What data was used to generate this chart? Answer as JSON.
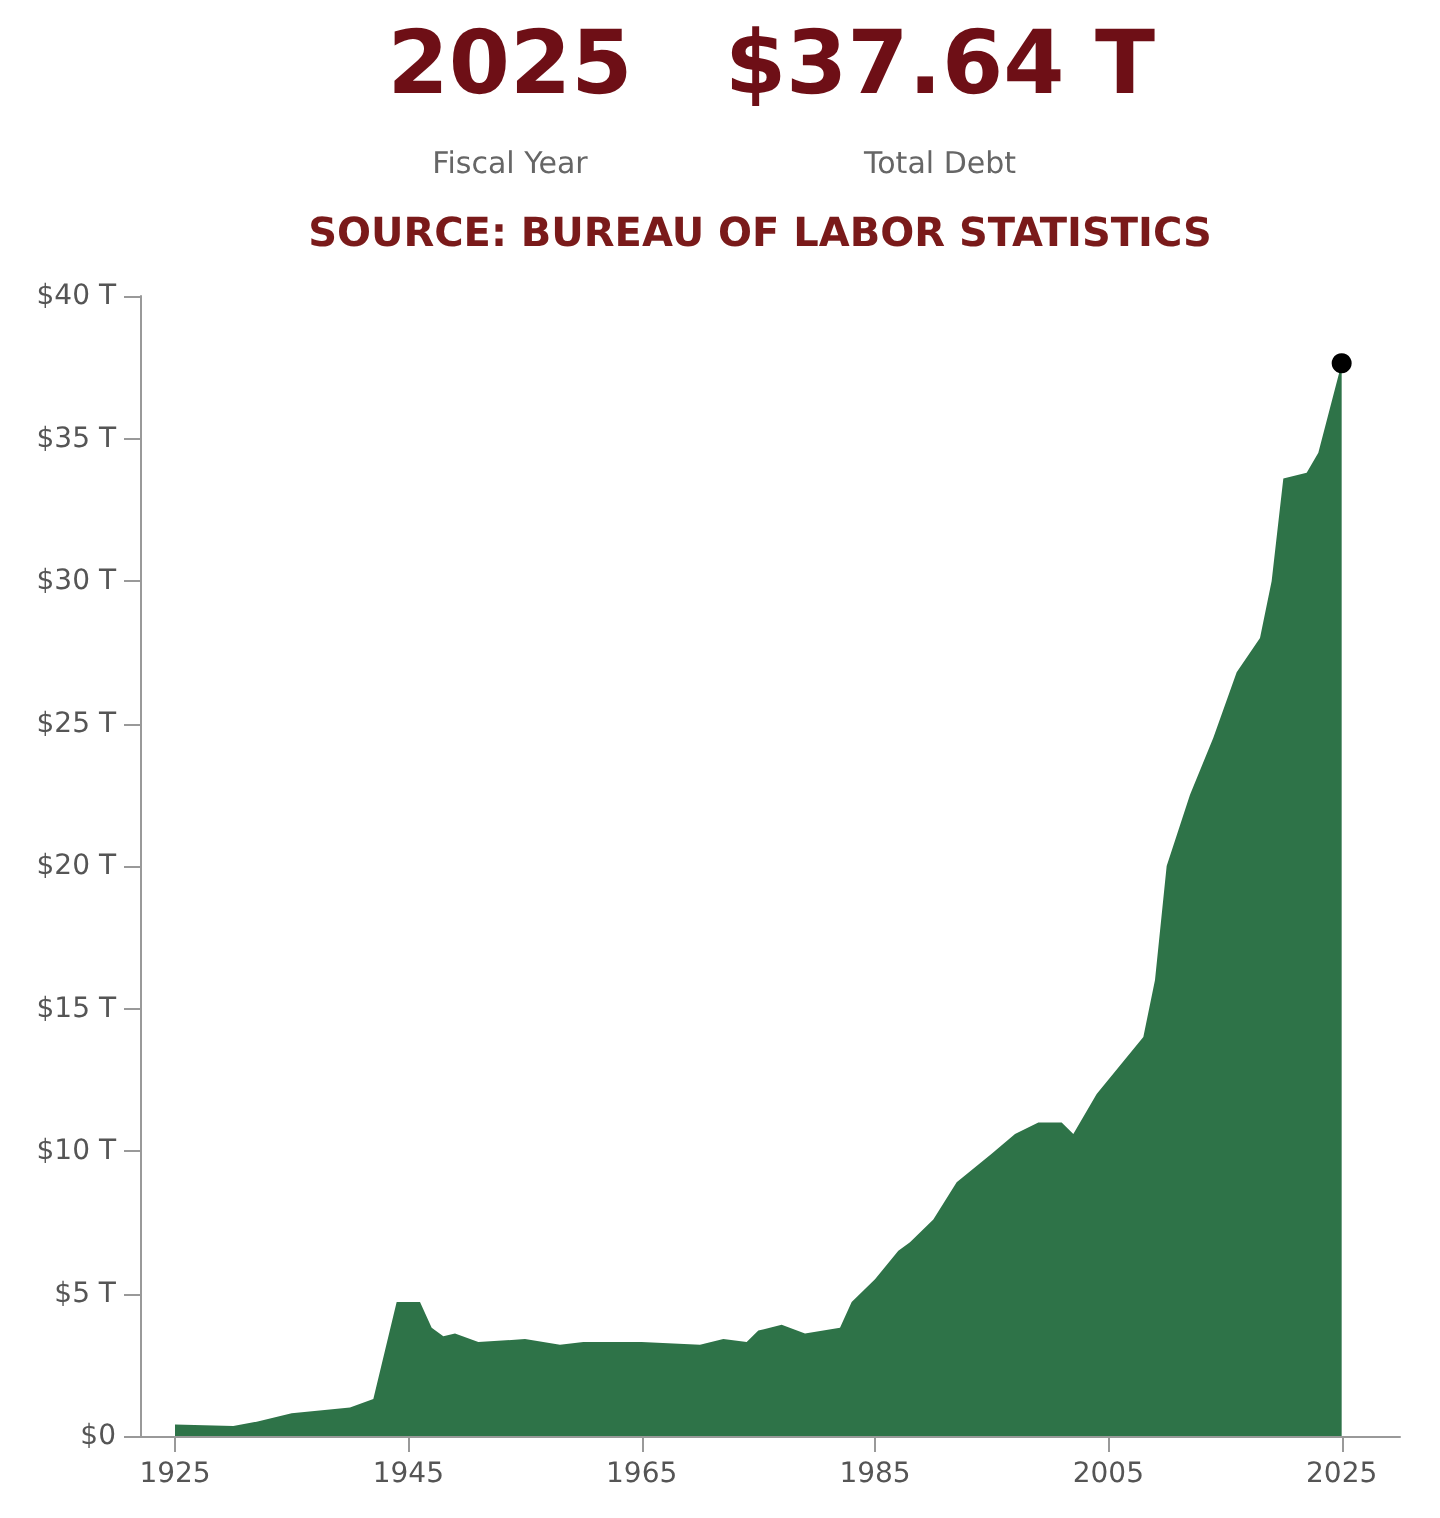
{
  "chart_data": {
    "type": "area",
    "annotations": [
      "2025",
      "Fiscal Year",
      "$37.64 T",
      "Total Debt",
      "SOURCE: BUREAU OF LABOR STATISTICS"
    ],
    "x": [
      1925,
      1930,
      1932,
      1935,
      1940,
      1942,
      1943,
      1944,
      1946,
      1947,
      1948,
      1949,
      1951,
      1955,
      1958,
      1960,
      1965,
      1970,
      1972,
      1974,
      1975,
      1977,
      1979,
      1982,
      1983,
      1985,
      1987,
      1988,
      1990,
      1992,
      1995,
      1997,
      1999,
      2001,
      2002,
      2004,
      2006,
      2008,
      2009,
      2010,
      2012,
      2014,
      2016,
      2018,
      2019,
      2020,
      2022,
      2023,
      2025
    ],
    "series": [
      {
        "color": "#2e7348",
        "values": [
          0.4,
          0.35,
          0.5,
          0.8,
          1.0,
          1.3,
          3.0,
          4.7,
          4.7,
          3.8,
          3.5,
          3.6,
          3.3,
          3.4,
          3.2,
          3.3,
          3.3,
          3.2,
          3.4,
          3.3,
          3.7,
          3.9,
          3.6,
          3.8,
          4.7,
          5.5,
          6.5,
          6.8,
          7.6,
          8.9,
          9.9,
          10.6,
          11.0,
          11.0,
          10.6,
          12.0,
          13.0,
          14.0,
          16.0,
          20.0,
          22.5,
          24.5,
          26.8,
          28.0,
          30.0,
          33.6,
          33.8,
          34.5,
          37.64
        ]
      }
    ],
    "xlim": [
      1922,
      2030
    ],
    "xticks": [
      1925,
      1945,
      1965,
      1985,
      2005,
      2025
    ],
    "ylim": [
      0,
      40
    ],
    "yticks": [
      {
        "value": 0,
        "label": "$0"
      },
      {
        "value": 5,
        "label": "$5 T"
      },
      {
        "value": 10,
        "label": "$10 T"
      },
      {
        "value": 15,
        "label": "$15 T"
      },
      {
        "value": 20,
        "label": "$20 T"
      },
      {
        "value": 25,
        "label": "$25 T"
      },
      {
        "value": 30,
        "label": "$30 T"
      },
      {
        "value": 35,
        "label": "$35 T"
      },
      {
        "value": 40,
        "label": "$40 T"
      }
    ],
    "tick_labels": "xy"
  }
}
